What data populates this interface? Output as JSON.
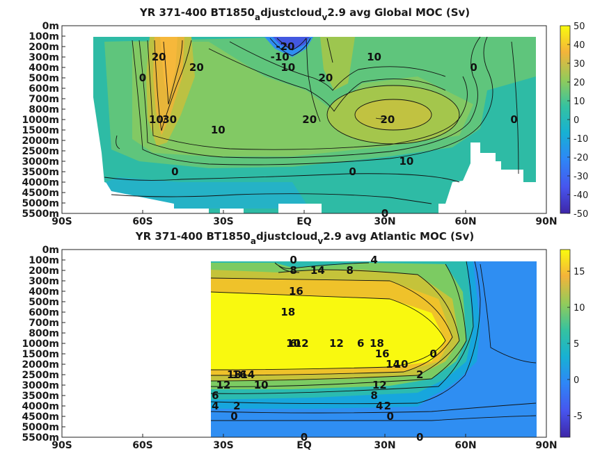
{
  "chart_data": [
    {
      "type": "heatmap",
      "title_prefix": "YR 371-400 BT1850",
      "title_sub_a": "a",
      "title_mid": "djustcloud",
      "title_sub_v": "v",
      "title_suffix": "2.9 avg  Global MOC (Sv)",
      "x_ticks": [
        "90S",
        "60S",
        "30S",
        "EQ",
        "30N",
        "60N",
        "90N"
      ],
      "y_ticks": [
        "0m",
        "100m",
        "200m",
        "300m",
        "400m",
        "500m",
        "600m",
        "700m",
        "800m",
        "1000m",
        "1500m",
        "2000m",
        "2500m",
        "3000m",
        "3500m",
        "4000m",
        "4500m",
        "5000m",
        "5500m"
      ],
      "colorbar_ticks": [
        "50",
        "40",
        "30",
        "20",
        "10",
        "0",
        "-10",
        "-20",
        "-30",
        "-40",
        "-50"
      ],
      "clim": [
        -50,
        50
      ],
      "contour_labels": [
        {
          "text": "-20",
          "lat": -7,
          "depth": "200m"
        },
        {
          "text": "-10",
          "lat": -9,
          "depth": "300m"
        },
        {
          "text": "20",
          "lat": -54,
          "depth": "300m"
        },
        {
          "text": "10",
          "lat": -55,
          "depth": "350m"
        },
        {
          "text": "0",
          "lat": -60,
          "depth": "500m"
        },
        {
          "text": "30",
          "lat": -50,
          "depth": "550m"
        },
        {
          "text": "20",
          "lat": -40,
          "depth": "400m"
        },
        {
          "text": "10",
          "lat": -6,
          "depth": "400m"
        },
        {
          "text": "20",
          "lat": 8,
          "depth": "500m"
        },
        {
          "text": "10",
          "lat": 26,
          "depth": "300m"
        },
        {
          "text": "20",
          "lat": 31,
          "depth": "650m"
        },
        {
          "text": "0",
          "lat": 63,
          "depth": "400m"
        },
        {
          "text": "0",
          "lat": 78,
          "depth": "250m"
        },
        {
          "text": "20",
          "lat": 2,
          "depth": "900m"
        },
        {
          "text": "10",
          "lat": -32,
          "depth": "1500m"
        },
        {
          "text": "10",
          "lat": 38,
          "depth": "3000m"
        },
        {
          "text": "0",
          "lat": -48,
          "depth": "3500m"
        },
        {
          "text": "0",
          "lat": 18,
          "depth": "3500m"
        },
        {
          "text": "0",
          "lat": 30,
          "depth": "5500m"
        }
      ],
      "features": {
        "max_sv": 35,
        "max_lat": -50,
        "min_sv": -25,
        "min_lat": -6,
        "nh_cell_sv": 24,
        "nh_cell_lat": 30,
        "aabw_sv": -8
      }
    },
    {
      "type": "heatmap",
      "title_prefix": "YR 371-400 BT1850",
      "title_sub_a": "a",
      "title_mid": "djustcloud",
      "title_sub_v": "v",
      "title_suffix": "2.9 avg  Atlantic MOC (Sv)",
      "x_ticks": [
        "90S",
        "60S",
        "30S",
        "EQ",
        "30N",
        "60N",
        "90N"
      ],
      "y_ticks": [
        "0m",
        "100m",
        "200m",
        "300m",
        "400m",
        "500m",
        "600m",
        "700m",
        "800m",
        "1000m",
        "1500m",
        "2000m",
        "2500m",
        "3000m",
        "3500m",
        "4000m",
        "4500m",
        "5000m",
        "5500m"
      ],
      "colorbar_ticks": [
        "15",
        "10",
        "5",
        "0",
        "-5"
      ],
      "clim": [
        -8,
        18
      ],
      "contour_labels": [
        {
          "text": "0",
          "lat": -4,
          "depth": "100m"
        },
        {
          "text": "6",
          "lat": -4,
          "depth": "150m"
        },
        {
          "text": "8",
          "lat": -4,
          "depth": "200m"
        },
        {
          "text": "10",
          "lat": -4,
          "depth": "250m"
        },
        {
          "text": "12",
          "lat": -1,
          "depth": "250m"
        },
        {
          "text": "14",
          "lat": 5,
          "depth": "200m"
        },
        {
          "text": "12",
          "lat": 12,
          "depth": "150m"
        },
        {
          "text": "8",
          "lat": 17,
          "depth": "200m"
        },
        {
          "text": "6",
          "lat": 21,
          "depth": "150m"
        },
        {
          "text": "4",
          "lat": 26,
          "depth": "100m"
        },
        {
          "text": "16",
          "lat": -3,
          "depth": "400m"
        },
        {
          "text": "18",
          "lat": -6,
          "depth": "600m"
        },
        {
          "text": "18",
          "lat": 27,
          "depth": "1000m"
        },
        {
          "text": "16",
          "lat": 29,
          "depth": "1500m"
        },
        {
          "text": "14",
          "lat": 33,
          "depth": "2000m"
        },
        {
          "text": "10",
          "lat": 36,
          "depth": "2000m"
        },
        {
          "text": "0",
          "lat": 48,
          "depth": "1500m"
        },
        {
          "text": "2",
          "lat": 43,
          "depth": "2500m"
        },
        {
          "text": "18",
          "lat": -26,
          "depth": "2500m"
        },
        {
          "text": "16",
          "lat": -24,
          "depth": "2500m"
        },
        {
          "text": "14",
          "lat": -21,
          "depth": "2500m"
        },
        {
          "text": "12",
          "lat": -30,
          "depth": "3000m"
        },
        {
          "text": "10",
          "lat": -16,
          "depth": "3000m"
        },
        {
          "text": "6",
          "lat": -33,
          "depth": "3500m"
        },
        {
          "text": "4",
          "lat": -33,
          "depth": "4000m"
        },
        {
          "text": "2",
          "lat": -25,
          "depth": "4000m"
        },
        {
          "text": "0",
          "lat": -26,
          "depth": "4500m"
        },
        {
          "text": "12",
          "lat": 28,
          "depth": "3000m"
        },
        {
          "text": "8",
          "lat": 26,
          "depth": "3500m"
        },
        {
          "text": "4",
          "lat": 28,
          "depth": "4000m"
        },
        {
          "text": "2",
          "lat": 31,
          "depth": "4000m"
        },
        {
          "text": "0",
          "lat": 32,
          "depth": "4500m"
        },
        {
          "text": "0",
          "lat": 0,
          "depth": "5500m"
        },
        {
          "text": "0",
          "lat": 43,
          "depth": "5500m"
        }
      ],
      "features": {
        "max_sv": 19,
        "max_lat": 5,
        "aabw_sv": -2,
        "sv_at_70N": -3
      }
    }
  ]
}
